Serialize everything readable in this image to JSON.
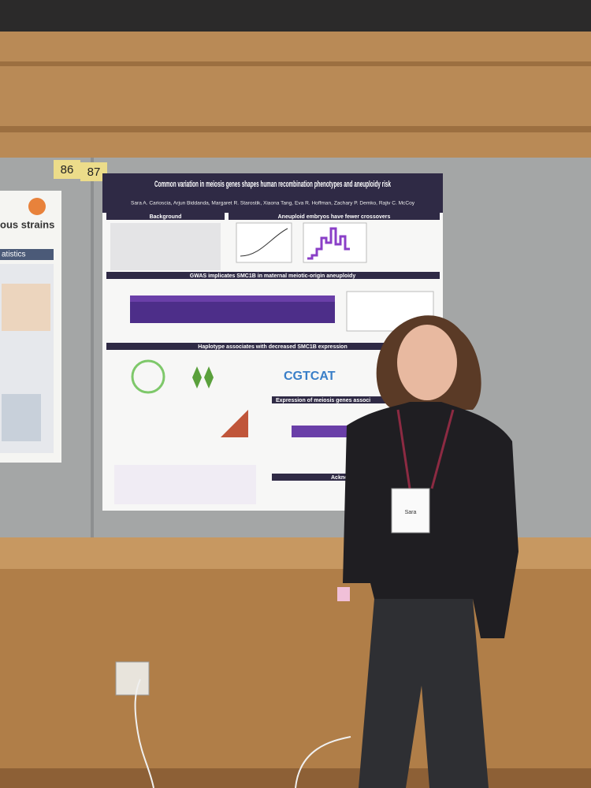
{
  "board": {
    "labels": [
      "86",
      "87"
    ]
  },
  "left_poster": {
    "heading": "ous strains",
    "subheading": "atistics"
  },
  "poster": {
    "title": "Common variation in meiosis genes shapes human recombination phenotypes and aneuploidy risk",
    "authors": "Sara A. Carioscia, Arjun Biddanda, Margaret R. Starostik, Xiaona Tang, Eva R. Hoffman, Zachary P. Demko, Rajiv C. McCoy",
    "sections": [
      "Background",
      "Aneuploid embryos have fewer crossovers",
      "GWAS implicates SMC1B in maternal meiotic-origin aneuploidy",
      "Haplotype associates with decreased SMC1B expression",
      "Expression of meiosis genes associ",
      "Acknowl"
    ]
  },
  "badge": {
    "name": "Sara"
  }
}
